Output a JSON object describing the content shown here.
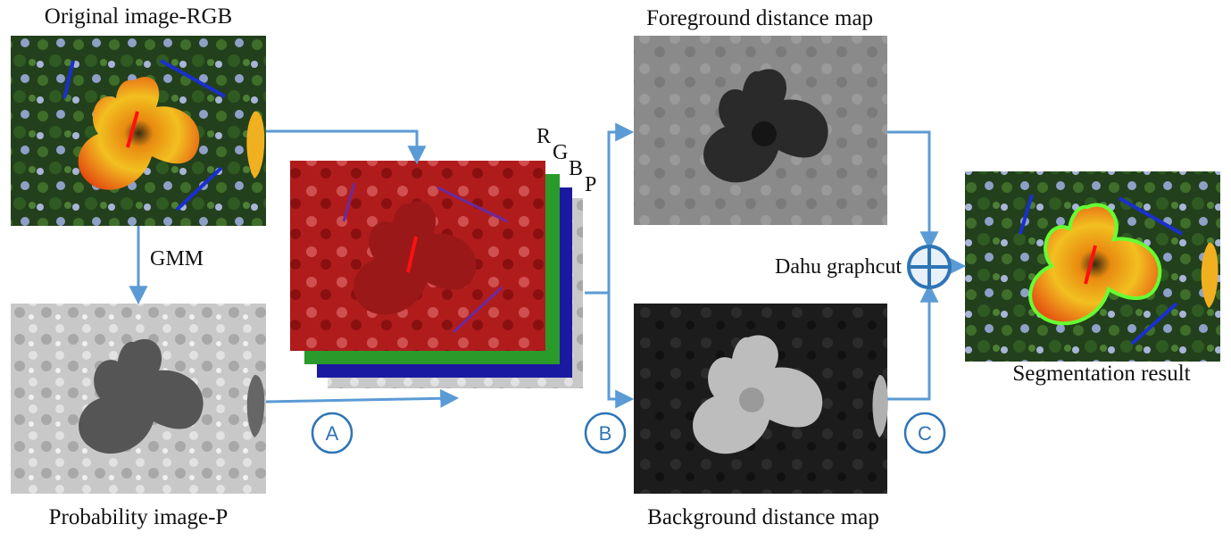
{
  "labels": {
    "original": "Original image-RGB",
    "gmm": "GMM",
    "probability": "Probability image-P",
    "foreground": "Foreground distance map",
    "background": "Background distance map",
    "graphcut": "Dahu graphcut",
    "segmentation": "Segmentation result"
  },
  "channels": [
    "R",
    "G",
    "B",
    "P"
  ],
  "steps": [
    "A",
    "B",
    "C"
  ],
  "colors": {
    "arrow": "#5b9bd5",
    "step_circle": "#2e75b6",
    "red_channel": "#b01c1c",
    "green_channel": "#2a9a2a",
    "blue_channel": "#1a1aa0",
    "contour": "#66ff33"
  }
}
